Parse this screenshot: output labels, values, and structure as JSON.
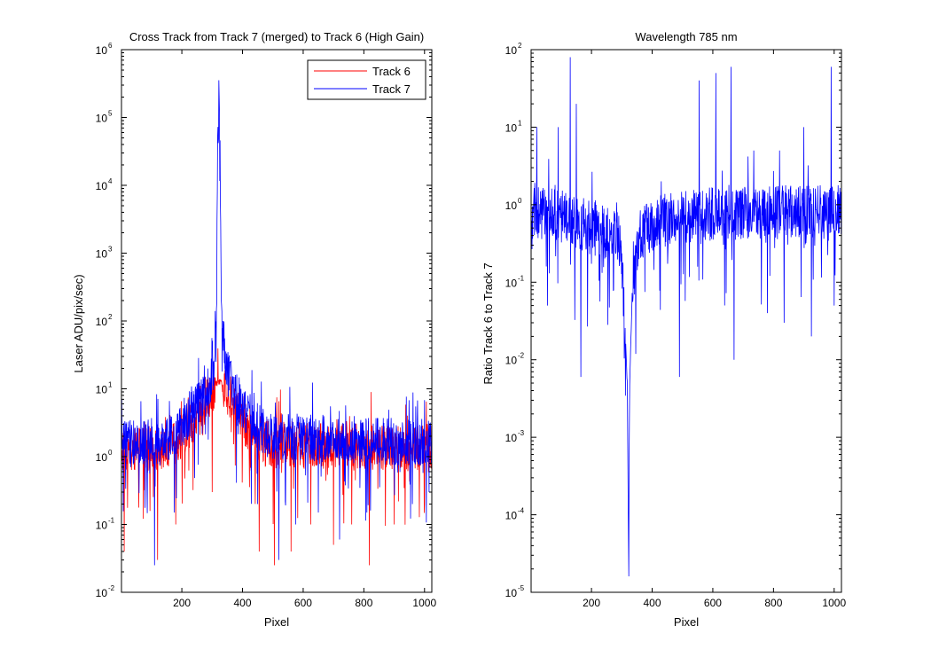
{
  "chart_data": [
    {
      "type": "line",
      "title": "Cross Track from Track 7 (merged) to Track 6 (High Gain)",
      "xlabel": "Pixel",
      "ylabel": "Laser ADU/pix/sec)",
      "xlim": [
        1,
        1024
      ],
      "ylim": [
        0.01,
        1000000
      ],
      "yscale": "log",
      "xticks": [
        200,
        400,
        600,
        800,
        1000
      ],
      "yticks_exp": [
        -2,
        -1,
        0,
        1,
        2,
        3,
        4,
        5,
        6
      ],
      "grid": false,
      "legend": "top-right",
      "series": [
        {
          "name": "Track 6",
          "color": "#ff0000",
          "baseline": [
            [
              1,
              1.3
            ],
            [
              150,
              1.3
            ],
            [
              200,
              2.0
            ],
            [
              260,
              5.0
            ],
            [
              300,
              10.0
            ],
            [
              320,
              13.0
            ],
            [
              340,
              11.0
            ],
            [
              380,
              6.0
            ],
            [
              420,
              2.5
            ],
            [
              480,
              1.5
            ],
            [
              1024,
              1.3
            ]
          ],
          "spikes": [
            [
              10,
              0.04
            ],
            [
              120,
              0.03
            ],
            [
              180,
              0.1
            ],
            [
              300,
              0.3
            ],
            [
              455,
              0.04
            ],
            [
              505,
              0.025
            ],
            [
              560,
              0.04
            ],
            [
              625,
              0.1
            ],
            [
              700,
              0.05
            ],
            [
              760,
              0.1
            ],
            [
              818,
              0.025
            ],
            [
              900,
              0.1
            ],
            [
              1000,
              0.2
            ]
          ]
        },
        {
          "name": "Track 7",
          "color": "#0000ff",
          "baseline": [
            [
              1,
              1.5
            ],
            [
              150,
              1.8
            ],
            [
              200,
              3.0
            ],
            [
              260,
              7.0
            ],
            [
              290,
              12.0
            ],
            [
              305,
              20.0
            ],
            [
              315,
              200.0
            ],
            [
              318,
              50000.0
            ],
            [
              322,
              330000.0
            ],
            [
              326,
              50000.0
            ],
            [
              330,
              200.0
            ],
            [
              345,
              20.0
            ],
            [
              370,
              9.0
            ],
            [
              420,
              4.0
            ],
            [
              480,
              2.0
            ],
            [
              1024,
              1.6
            ]
          ],
          "spikes": [
            [
              110,
              0.025
            ],
            [
              175,
              0.15
            ],
            [
              450,
              0.2
            ],
            [
              520,
              0.03
            ],
            [
              575,
              0.1
            ],
            [
              650,
              0.15
            ],
            [
              720,
              0.06
            ],
            [
              810,
              0.15
            ],
            [
              960,
              0.2
            ],
            [
              1015,
              0.3
            ]
          ]
        }
      ]
    },
    {
      "type": "line",
      "title": "Wavelength 785 nm",
      "xlabel": "Pixel",
      "ylabel": "Ratio Track 6 to Track 7",
      "xlim": [
        1,
        1024
      ],
      "ylim": [
        1e-05,
        100
      ],
      "yscale": "log",
      "xticks": [
        200,
        400,
        600,
        800,
        1000
      ],
      "yticks_exp": [
        -5,
        -4,
        -3,
        -2,
        -1,
        0,
        1,
        2
      ],
      "grid": false,
      "legend": "none",
      "series": [
        {
          "color": "#0000ff",
          "baseline": [
            [
              1,
              0.8
            ],
            [
              100,
              0.7
            ],
            [
              200,
              0.5
            ],
            [
              280,
              0.4
            ],
            [
              295,
              0.3
            ],
            [
              310,
              0.03
            ],
            [
              318,
              0.005
            ],
            [
              322,
              4e-05
            ],
            [
              326,
              0.005
            ],
            [
              335,
              0.1
            ],
            [
              360,
              0.4
            ],
            [
              420,
              0.6
            ],
            [
              500,
              0.7
            ],
            [
              700,
              0.8
            ],
            [
              1024,
              0.8
            ]
          ],
          "spikes": [
            [
              20,
              10.0
            ],
            [
              55,
              0.05
            ],
            [
              90,
              10.0
            ],
            [
              130,
              80.0
            ],
            [
              150,
              20.0
            ],
            [
              165,
              0.006
            ],
            [
              215,
              1.0
            ],
            [
              430,
              2.0
            ],
            [
              490,
              0.006
            ],
            [
              555,
              40.0
            ],
            [
              610,
              50.0
            ],
            [
              660,
              60.0
            ],
            [
              670,
              0.01
            ],
            [
              735,
              5.0
            ],
            [
              780,
              0.04
            ],
            [
              820,
              5.0
            ],
            [
              835,
              0.03
            ],
            [
              900,
              10.0
            ],
            [
              925,
              0.02
            ],
            [
              990,
              60.0
            ],
            [
              1000,
              0.05
            ]
          ]
        }
      ]
    }
  ]
}
